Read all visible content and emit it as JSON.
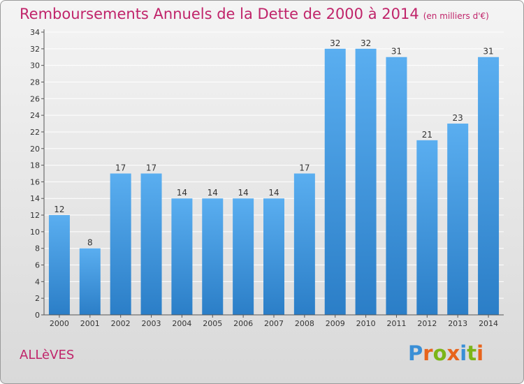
{
  "title": "Remboursements Annuels de la Dette de 2000 à 2014",
  "unit_note": "(en milliers d'€)",
  "commune": "ALLèVES",
  "logo": {
    "text": "Proxiti",
    "colors": [
      "#3a8fd6",
      "#e8641c",
      "#7cb518",
      "#e8641c",
      "#3a8fd6",
      "#7cb518",
      "#e8641c"
    ]
  },
  "colors": {
    "bar_top": "#5aaef0",
    "bar_bottom": "#2b7ec7",
    "title": "#c0246a",
    "grid": "#ffffff"
  },
  "chart_data": {
    "type": "bar",
    "categories": [
      "2000",
      "2001",
      "2002",
      "2003",
      "2004",
      "2005",
      "2006",
      "2007",
      "2008",
      "2009",
      "2010",
      "2011",
      "2012",
      "2013",
      "2014"
    ],
    "values": [
      12,
      8,
      17,
      17,
      14,
      14,
      14,
      14,
      17,
      32,
      32,
      31,
      21,
      23,
      31
    ],
    "title": "Remboursements Annuels de la Dette de 2000 à 2014",
    "xlabel": "",
    "ylabel": "",
    "ylim": [
      0,
      34
    ],
    "yticks": [
      0,
      2,
      4,
      6,
      8,
      10,
      12,
      14,
      16,
      18,
      20,
      22,
      24,
      26,
      28,
      30,
      32,
      34
    ],
    "grid": true,
    "data_labels": true
  }
}
